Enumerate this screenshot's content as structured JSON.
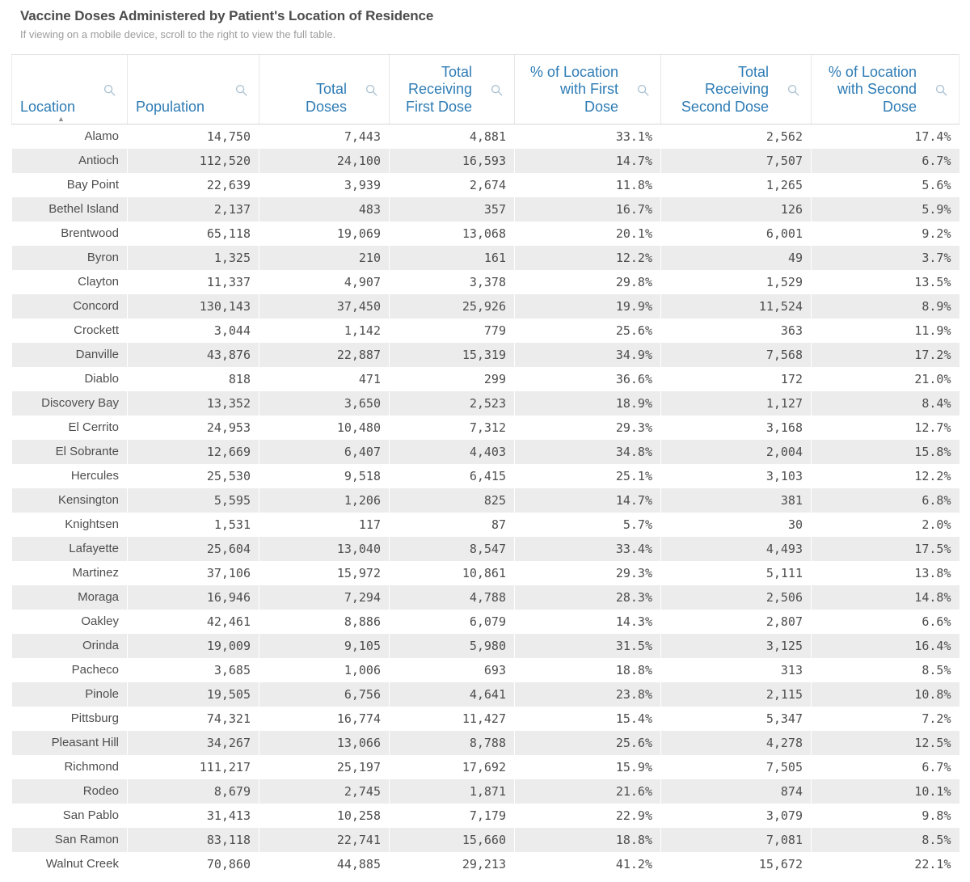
{
  "title": "Vaccine Doses Administered by Patient's Location of Residence",
  "subtitle": "If viewing on a mobile device, scroll to the right to view the full table.",
  "colors": {
    "header_text": "#2e7cb5",
    "body_text": "#4e4e4e",
    "alt_row_background": "#ececec",
    "title_text": "#4c4c4c",
    "subtitle_text": "#9c9c9c",
    "search_icon": "#a7bfd0"
  },
  "icons": {
    "header_search": "magnifying-glass",
    "sort_ascending": "▲"
  },
  "chart_data": {
    "type": "table",
    "title": "Vaccine Doses Administered by Patient's Location of Residence",
    "sort_column": "Location",
    "sort_order": "ascending",
    "sort_indicator": "▲",
    "columns": [
      "Location",
      "Population",
      "Total\nDoses",
      "Total\nReceiving\nFirst Dose",
      "% of Location\nwith First\nDose",
      "Total\nReceiving\nSecond Dose",
      "% of Location\nwith Second\nDose"
    ],
    "rows": [
      [
        "Alamo",
        "14,750",
        "7,443",
        "4,881",
        "33.1%",
        "2,562",
        "17.4%"
      ],
      [
        "Antioch",
        "112,520",
        "24,100",
        "16,593",
        "14.7%",
        "7,507",
        "6.7%"
      ],
      [
        "Bay Point",
        "22,639",
        "3,939",
        "2,674",
        "11.8%",
        "1,265",
        "5.6%"
      ],
      [
        "Bethel Island",
        "2,137",
        "483",
        "357",
        "16.7%",
        "126",
        "5.9%"
      ],
      [
        "Brentwood",
        "65,118",
        "19,069",
        "13,068",
        "20.1%",
        "6,001",
        "9.2%"
      ],
      [
        "Byron",
        "1,325",
        "210",
        "161",
        "12.2%",
        "49",
        "3.7%"
      ],
      [
        "Clayton",
        "11,337",
        "4,907",
        "3,378",
        "29.8%",
        "1,529",
        "13.5%"
      ],
      [
        "Concord",
        "130,143",
        "37,450",
        "25,926",
        "19.9%",
        "11,524",
        "8.9%"
      ],
      [
        "Crockett",
        "3,044",
        "1,142",
        "779",
        "25.6%",
        "363",
        "11.9%"
      ],
      [
        "Danville",
        "43,876",
        "22,887",
        "15,319",
        "34.9%",
        "7,568",
        "17.2%"
      ],
      [
        "Diablo",
        "818",
        "471",
        "299",
        "36.6%",
        "172",
        "21.0%"
      ],
      [
        "Discovery Bay",
        "13,352",
        "3,650",
        "2,523",
        "18.9%",
        "1,127",
        "8.4%"
      ],
      [
        "El Cerrito",
        "24,953",
        "10,480",
        "7,312",
        "29.3%",
        "3,168",
        "12.7%"
      ],
      [
        "El Sobrante",
        "12,669",
        "6,407",
        "4,403",
        "34.8%",
        "2,004",
        "15.8%"
      ],
      [
        "Hercules",
        "25,530",
        "9,518",
        "6,415",
        "25.1%",
        "3,103",
        "12.2%"
      ],
      [
        "Kensington",
        "5,595",
        "1,206",
        "825",
        "14.7%",
        "381",
        "6.8%"
      ],
      [
        "Knightsen",
        "1,531",
        "117",
        "87",
        "5.7%",
        "30",
        "2.0%"
      ],
      [
        "Lafayette",
        "25,604",
        "13,040",
        "8,547",
        "33.4%",
        "4,493",
        "17.5%"
      ],
      [
        "Martinez",
        "37,106",
        "15,972",
        "10,861",
        "29.3%",
        "5,111",
        "13.8%"
      ],
      [
        "Moraga",
        "16,946",
        "7,294",
        "4,788",
        "28.3%",
        "2,506",
        "14.8%"
      ],
      [
        "Oakley",
        "42,461",
        "8,886",
        "6,079",
        "14.3%",
        "2,807",
        "6.6%"
      ],
      [
        "Orinda",
        "19,009",
        "9,105",
        "5,980",
        "31.5%",
        "3,125",
        "16.4%"
      ],
      [
        "Pacheco",
        "3,685",
        "1,006",
        "693",
        "18.8%",
        "313",
        "8.5%"
      ],
      [
        "Pinole",
        "19,505",
        "6,756",
        "4,641",
        "23.8%",
        "2,115",
        "10.8%"
      ],
      [
        "Pittsburg",
        "74,321",
        "16,774",
        "11,427",
        "15.4%",
        "5,347",
        "7.2%"
      ],
      [
        "Pleasant Hill",
        "34,267",
        "13,066",
        "8,788",
        "25.6%",
        "4,278",
        "12.5%"
      ],
      [
        "Richmond",
        "111,217",
        "25,197",
        "17,692",
        "15.9%",
        "7,505",
        "6.7%"
      ],
      [
        "Rodeo",
        "8,679",
        "2,745",
        "1,871",
        "21.6%",
        "874",
        "10.1%"
      ],
      [
        "San Pablo",
        "31,413",
        "10,258",
        "7,179",
        "22.9%",
        "3,079",
        "9.8%"
      ],
      [
        "San Ramon",
        "83,118",
        "22,741",
        "15,660",
        "18.8%",
        "7,081",
        "8.5%"
      ],
      [
        "Walnut Creek",
        "70,860",
        "44,885",
        "29,213",
        "41.2%",
        "15,672",
        "22.1%"
      ]
    ]
  }
}
